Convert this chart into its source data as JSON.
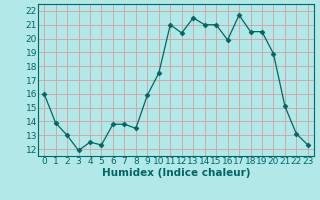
{
  "title": "",
  "xlabel": "Humidex (Indice chaleur)",
  "ylabel": "",
  "x": [
    0,
    1,
    2,
    3,
    4,
    5,
    6,
    7,
    8,
    9,
    10,
    11,
    12,
    13,
    14,
    15,
    16,
    17,
    18,
    19,
    20,
    21,
    22,
    23
  ],
  "y": [
    16.0,
    13.9,
    13.0,
    11.9,
    12.5,
    12.3,
    13.8,
    13.8,
    13.5,
    15.9,
    17.5,
    21.0,
    20.4,
    21.5,
    21.0,
    21.0,
    19.9,
    21.7,
    20.5,
    20.5,
    18.9,
    15.1,
    13.1,
    12.3
  ],
  "line_color": "#006666",
  "marker": "D",
  "marker_size": 2.5,
  "bg_color": "#b3e8e8",
  "grid_color": "#d4a0a0",
  "text_color": "#006666",
  "ylim": [
    11.5,
    22.5
  ],
  "xlim": [
    -0.5,
    23.5
  ],
  "yticks": [
    12,
    13,
    14,
    15,
    16,
    17,
    18,
    19,
    20,
    21,
    22
  ],
  "xticks": [
    0,
    1,
    2,
    3,
    4,
    5,
    6,
    7,
    8,
    9,
    10,
    11,
    12,
    13,
    14,
    15,
    16,
    17,
    18,
    19,
    20,
    21,
    22,
    23
  ],
  "tick_fontsize": 6.5,
  "xlabel_fontsize": 7.5
}
